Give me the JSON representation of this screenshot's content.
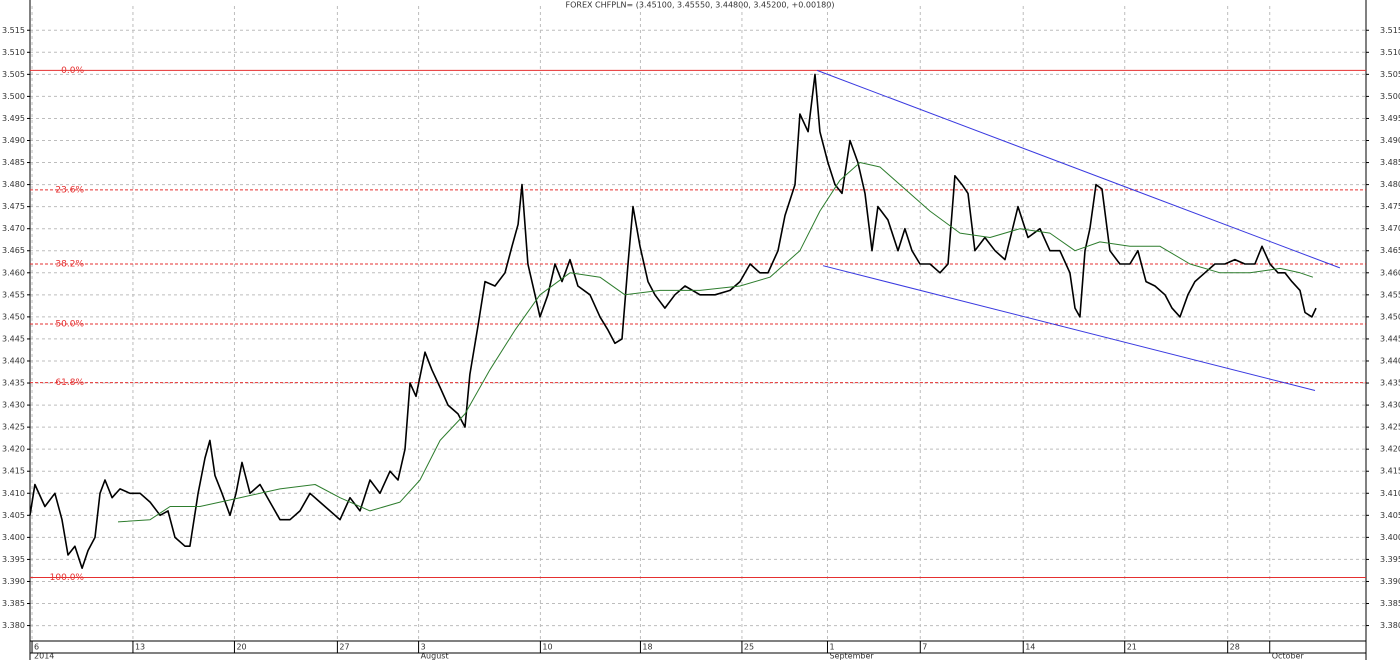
{
  "chart_data": {
    "type": "line",
    "title": "FOREX CHFPLN= (3.45100, 3.45550, 3.44800, 3.45200, +0.00180)",
    "xlim": [
      0,
      92.14
    ],
    "ylim": [
      3.3765,
      3.5205
    ],
    "grid": true,
    "xticks": [
      {
        "value": 0.14,
        "label": "6"
      },
      {
        "value": 7.1,
        "label": "13"
      },
      {
        "value": 14.1,
        "label": "20"
      },
      {
        "value": 21.2,
        "label": "27"
      },
      {
        "value": 26.8,
        "label": "3"
      },
      {
        "value": 35.2,
        "label": "10"
      },
      {
        "value": 42.1,
        "label": "18"
      },
      {
        "value": 49.1,
        "label": "25"
      },
      {
        "value": 55.0,
        "label": "1"
      },
      {
        "value": 61.4,
        "label": "7"
      },
      {
        "value": 68.5,
        "label": "14"
      },
      {
        "value": 75.5,
        "label": "21"
      },
      {
        "value": 82.6,
        "label": "28"
      },
      {
        "value": 85.5,
        "label": ""
      }
    ],
    "xtick_sublabels": [
      {
        "value": 0.14,
        "label": "2014"
      },
      {
        "value": 26.8,
        "label": "August"
      },
      {
        "value": 55.0,
        "label": "September"
      },
      {
        "value": 85.5,
        "label": "October"
      }
    ],
    "yticks": [
      {
        "value": 3.38,
        "label": "3.380"
      },
      3.385,
      {
        "value": 3.39,
        "label": "3.390"
      },
      3.395,
      {
        "value": 3.4,
        "label": "3.400"
      },
      3.405,
      {
        "value": 3.41,
        "label": "3.410"
      },
      3.415,
      {
        "value": 3.42,
        "label": "3.420"
      },
      3.425,
      {
        "value": 3.43,
        "label": "3.430"
      },
      3.435,
      {
        "value": 3.44,
        "label": "3.440"
      },
      3.445,
      {
        "value": 3.45,
        "label": "3.450"
      },
      3.455,
      {
        "value": 3.46,
        "label": "3.460"
      },
      3.465,
      {
        "value": 3.47,
        "label": "3.470"
      },
      3.475,
      {
        "value": 3.48,
        "label": "3.480"
      },
      3.485,
      {
        "value": 3.49,
        "label": "3.490"
      },
      3.495,
      {
        "value": 3.5,
        "label": "3.500"
      },
      3.505,
      {
        "value": 3.51,
        "label": "3.510"
      },
      3.515
    ],
    "series": [
      {
        "color": "#000000",
        "x": [
          0,
          0.34,
          1.03,
          1.72,
          2.21,
          2.62,
          3.1,
          3.59,
          4.0,
          4.48,
          4.83,
          5.17,
          5.66,
          6.21,
          6.9,
          7.59,
          8.28,
          8.97,
          9.52,
          10.0,
          10.69,
          11.03,
          11.59,
          12.07,
          12.41,
          12.76,
          13.24,
          13.79,
          14.21,
          14.62,
          15.17,
          15.86,
          16.55,
          17.24,
          17.93,
          18.62,
          19.31,
          20.0,
          20.69,
          21.38,
          22.07,
          22.76,
          23.45,
          24.14,
          24.83,
          25.38,
          25.86,
          26.21,
          26.62,
          27.24,
          27.72,
          28.28,
          28.83,
          29.52,
          30.0,
          30.34,
          30.9,
          31.38,
          32.07,
          32.76,
          33.24,
          33.66,
          33.93,
          34.34,
          34.83,
          35.17,
          35.72,
          36.21,
          36.69,
          37.24,
          37.79,
          38.62,
          39.31,
          39.86,
          40.34,
          40.83,
          41.24,
          41.59,
          42.07,
          42.62,
          43.1,
          43.79,
          44.48,
          45.17,
          46.21,
          47.24,
          48.28,
          48.97,
          49.66,
          50.34,
          50.9,
          51.59,
          52.07,
          52.76,
          53.1,
          53.66,
          54.14,
          54.48,
          55.03,
          55.52,
          56.0,
          56.55,
          57.1,
          57.59,
          58.07,
          58.48,
          59.17,
          59.86,
          60.34,
          60.83,
          61.38,
          62.07,
          62.76,
          63.31,
          63.79,
          64.28,
          64.69,
          65.17,
          65.86,
          66.55,
          67.24,
          68.14,
          68.83,
          69.66,
          70.34,
          71.03,
          71.72,
          72.07,
          72.41,
          72.76,
          73.1,
          73.52,
          73.93,
          74.48,
          75.17,
          75.86,
          76.41,
          76.97,
          77.59,
          78.28,
          78.76,
          79.31,
          79.86,
          80.34,
          81.03,
          81.72,
          82.41,
          83.1,
          83.79,
          84.48,
          84.97,
          85.52,
          86.07,
          86.55,
          87.03,
          87.59,
          87.93,
          88.41,
          88.69
        ],
        "values": [
          3.405,
          3.412,
          3.407,
          3.41,
          3.404,
          3.396,
          3.398,
          3.393,
          3.397,
          3.4,
          3.41,
          3.413,
          3.409,
          3.411,
          3.41,
          3.41,
          3.408,
          3.405,
          3.406,
          3.4,
          3.398,
          3.398,
          3.41,
          3.418,
          3.422,
          3.414,
          3.41,
          3.405,
          3.41,
          3.417,
          3.41,
          3.412,
          3.408,
          3.404,
          3.404,
          3.406,
          3.41,
          3.408,
          3.406,
          3.404,
          3.409,
          3.406,
          3.413,
          3.41,
          3.415,
          3.413,
          3.42,
          3.435,
          3.432,
          3.442,
          3.438,
          3.434,
          3.43,
          3.428,
          3.425,
          3.437,
          3.448,
          3.458,
          3.457,
          3.46,
          3.466,
          3.471,
          3.48,
          3.462,
          3.455,
          3.45,
          3.455,
          3.462,
          3.458,
          3.463,
          3.457,
          3.455,
          3.45,
          3.447,
          3.444,
          3.445,
          3.462,
          3.475,
          3.466,
          3.458,
          3.455,
          3.452,
          3.455,
          3.457,
          3.455,
          3.455,
          3.456,
          3.458,
          3.462,
          3.46,
          3.46,
          3.465,
          3.473,
          3.48,
          3.496,
          3.492,
          3.505,
          3.492,
          3.485,
          3.48,
          3.478,
          3.49,
          3.485,
          3.478,
          3.465,
          3.475,
          3.472,
          3.465,
          3.47,
          3.465,
          3.462,
          3.462,
          3.46,
          3.462,
          3.482,
          3.48,
          3.478,
          3.465,
          3.468,
          3.465,
          3.463,
          3.475,
          3.468,
          3.47,
          3.465,
          3.465,
          3.46,
          3.452,
          3.45,
          3.465,
          3.47,
          3.48,
          3.479,
          3.465,
          3.462,
          3.462,
          3.465,
          3.458,
          3.457,
          3.455,
          3.452,
          3.45,
          3.455,
          3.458,
          3.46,
          3.462,
          3.462,
          3.463,
          3.462,
          3.462,
          3.466,
          3.462,
          3.46,
          3.46,
          3.458,
          3.456,
          3.451,
          3.45,
          3.452
        ]
      },
      {
        "color": "#2e7d2e",
        "x": [
          6.07,
          8.28,
          9.66,
          11.72,
          14.48,
          17.24,
          19.66,
          21.38,
          23.45,
          25.52,
          26.9,
          28.28,
          30.0,
          31.72,
          33.45,
          35.17,
          37.24,
          39.31,
          41.03,
          43.45,
          46.21,
          48.97,
          51.03,
          53.1,
          54.48,
          55.86,
          57.24,
          58.62,
          60.34,
          62.07,
          64.14,
          66.21,
          68.28,
          70.34,
          72.07,
          73.79,
          75.86,
          77.93,
          80.0,
          82.07,
          84.14,
          86.21,
          87.59,
          88.48
        ],
        "values": [
          3.4035,
          3.404,
          3.407,
          3.407,
          3.409,
          3.411,
          3.412,
          3.409,
          3.406,
          3.408,
          3.413,
          3.422,
          3.428,
          3.438,
          3.447,
          3.455,
          3.46,
          3.459,
          3.455,
          3.456,
          3.456,
          3.457,
          3.459,
          3.465,
          3.474,
          3.481,
          3.485,
          3.484,
          3.479,
          3.474,
          3.469,
          3.468,
          3.47,
          3.469,
          3.465,
          3.467,
          3.466,
          3.466,
          3.462,
          3.46,
          3.46,
          3.461,
          3.46,
          3.459
        ]
      }
    ],
    "fib_levels": [
      {
        "label": "0.0%",
        "value": 3.5059,
        "style": "solid"
      },
      {
        "label": "23.6%",
        "value": 3.4788,
        "style": "dashed"
      },
      {
        "label": "38.2%",
        "value": 3.462,
        "style": "dashed"
      },
      {
        "label": "50.0%",
        "value": 3.4484,
        "style": "dashed"
      },
      {
        "label": "61.8%",
        "value": 3.4351,
        "style": "dashed"
      },
      {
        "label": "100.0%",
        "value": 3.3909,
        "style": "solid"
      }
    ],
    "fib_color": "#e53030",
    "trendlines": [
      {
        "color": "#3a3ae0",
        "x": [
          54.28,
          90.34
        ],
        "y": [
          3.5059,
          3.4611
        ]
      },
      {
        "color": "#3a3ae0",
        "x": [
          54.69,
          88.62
        ],
        "y": [
          3.4616,
          3.4333
        ]
      }
    ]
  }
}
